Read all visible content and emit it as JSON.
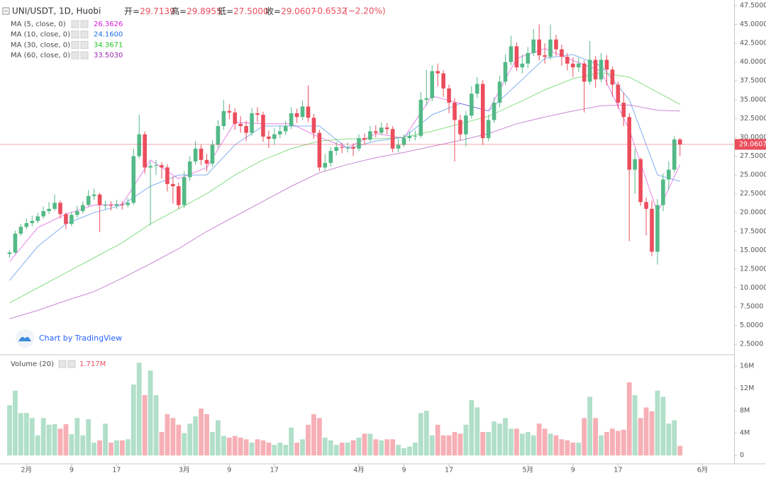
{
  "header": {
    "symbol": "UNI/USDT, 1D, Huobi",
    "ohlc": [
      {
        "name": "开=",
        "value": 29.7139
      },
      {
        "name": "高=",
        "value": 29.8955
      },
      {
        "name": "低=",
        "value": 27.5,
        "value_label": "27.5000"
      },
      {
        "name": "收=",
        "value": 29.0607
      }
    ],
    "change": -0.6532,
    "change_pct": {
      "value": -2.2,
      "label": "(−2.20%)"
    },
    "brand": "Chart by TradingView"
  },
  "chart_data": {
    "type": "candlestick",
    "up_color": "#53b987",
    "down_color": "#eb4d5c",
    "grid": false,
    "xlim": [
      -1.7,
      128.6
    ],
    "xticks": [
      {
        "value": 3,
        "label": "2月"
      },
      {
        "value": 11,
        "label": "9"
      },
      {
        "value": 19,
        "label": "17"
      },
      {
        "value": 31,
        "label": "3月"
      },
      {
        "value": 39,
        "label": "9"
      },
      {
        "value": 47,
        "label": "17"
      },
      {
        "value": 62,
        "label": "4月"
      },
      {
        "value": 70,
        "label": "9"
      },
      {
        "value": 78,
        "label": "17"
      },
      {
        "value": 92,
        "label": "5月"
      },
      {
        "value": 100,
        "label": "9"
      },
      {
        "value": 108,
        "label": "17"
      },
      {
        "value": 123,
        "label": "6月"
      }
    ],
    "ylim": [
      1.2,
      48.25
    ],
    "yticks": [
      {
        "value": 2.5,
        "label": "2.5000"
      },
      {
        "value": 5,
        "label": "5.0000"
      },
      {
        "value": 7.5,
        "label": "7.5000"
      },
      {
        "value": 10,
        "label": "10.0000"
      },
      {
        "value": 12.5,
        "label": "12.5000"
      },
      {
        "value": 15,
        "label": "15.0000"
      },
      {
        "value": 17.5,
        "label": "17.5000"
      },
      {
        "value": 20,
        "label": "20.0000"
      },
      {
        "value": 22.5,
        "label": "22.5000"
      },
      {
        "value": 25,
        "label": "25.0000"
      },
      {
        "value": 27.5,
        "label": "27.5000"
      },
      {
        "value": 30,
        "label": "30.0000"
      },
      {
        "value": 32.5,
        "label": "32.5000"
      },
      {
        "value": 35,
        "label": "35.0000"
      },
      {
        "value": 37.5,
        "label": "37.5000"
      },
      {
        "value": 40,
        "label": "40.0000"
      },
      {
        "value": 42.5,
        "label": "42.5000"
      },
      {
        "value": 45,
        "label": "45.0000"
      },
      {
        "value": 47.5,
        "label": "47.5000"
      }
    ],
    "open": [
      14.5,
      14.7,
      17.2,
      18.1,
      18.6,
      18.9,
      19.5,
      20.2,
      20.5,
      21.3,
      19.8,
      18.5,
      19.7,
      20.2,
      21.0,
      22.2,
      22.4,
      21.0,
      21.0,
      20.9,
      21.1,
      21.0,
      21.3,
      27.5,
      30.4,
      26.0,
      26.2,
      26.3,
      26.0,
      23.8,
      23.5,
      21.0,
      24.7,
      26.8,
      28.5,
      27.0,
      26.5,
      29.0,
      31.5,
      33.5,
      33.3,
      31.8,
      31.5,
      30.6,
      33.2,
      33.0,
      30.1,
      29.8,
      30.4,
      30.8,
      31.5,
      33.2,
      32.7,
      34.1,
      32.6,
      30.6,
      26.0,
      26.6,
      28.2,
      28.7,
      28.6,
      28.7,
      28.5,
      29.9,
      29.7,
      30.8,
      30.6,
      31.3,
      31.1,
      28.5,
      29.0,
      29.9,
      30.2,
      30.2,
      35.0,
      35.2,
      38.8,
      38.5,
      36.5,
      34.6,
      32.3,
      30.4,
      32.9,
      35.8,
      37.1,
      29.9,
      32.3,
      34.6,
      37.4,
      40.0,
      42.1,
      39.3,
      39.8,
      41.2,
      43.0,
      40.9,
      40.7,
      43.0,
      41.7,
      40.7,
      39.8,
      39.3,
      39.8,
      37.4,
      40.3,
      37.7,
      40.3,
      39.0,
      37.0,
      34.6,
      32.7,
      25.7,
      27.1,
      21.4,
      20.5,
      14.8,
      21.0,
      24.4,
      25.7,
      29.7139
    ],
    "high": [
      15.0,
      17.6,
      18.5,
      19.2,
      19.6,
      20.0,
      20.8,
      21.4,
      22.4,
      21.6,
      20.0,
      20.1,
      20.9,
      21.5,
      23.0,
      23.2,
      22.6,
      21.6,
      21.5,
      21.7,
      21.5,
      21.9,
      28.5,
      33.0,
      30.8,
      26.8,
      27.0,
      26.7,
      26.4,
      24.8,
      24.0,
      25.5,
      27.5,
      29.5,
      29.0,
      27.8,
      29.6,
      32.3,
      35.0,
      34.4,
      33.9,
      32.8,
      32.2,
      33.9,
      34.0,
      33.4,
      30.9,
      31.2,
      31.6,
      32.2,
      34.0,
      33.8,
      34.9,
      36.9,
      33.1,
      31.0,
      27.8,
      28.7,
      29.4,
      29.3,
      29.3,
      29.2,
      30.4,
      30.5,
      31.5,
      31.6,
      32.0,
      31.9,
      31.5,
      29.8,
      30.4,
      30.8,
      30.9,
      36.0,
      39.0,
      39.6,
      39.8,
      38.9,
      37.0,
      35.2,
      33.0,
      33.5,
      36.8,
      38.0,
      37.6,
      33.0,
      35.3,
      38.2,
      41.0,
      43.5,
      42.6,
      41.0,
      42.0,
      44.4,
      45.0,
      42.5,
      45.0,
      43.6,
      42.3,
      41.2,
      40.6,
      40.6,
      40.2,
      42.8,
      40.8,
      41.2,
      40.9,
      39.4,
      37.4,
      36.0,
      33.2,
      28.5,
      27.3,
      22.0,
      21.6,
      21.8,
      25.2,
      26.8,
      30.2,
      29.8955
    ],
    "low": [
      14.0,
      14.5,
      16.9,
      17.8,
      18.2,
      18.6,
      19.2,
      19.8,
      20.2,
      19.2,
      17.8,
      18.2,
      19.3,
      19.9,
      20.8,
      21.7,
      17.4,
      20.4,
      20.3,
      20.5,
      20.4,
      20.7,
      21.0,
      27.2,
      25.2,
      18.3,
      25.0,
      24.5,
      22.8,
      21.2,
      20.5,
      20.6,
      24.2,
      26.4,
      26.3,
      25.5,
      26.1,
      28.6,
      31.0,
      32.4,
      31.0,
      30.6,
      29.5,
      30.2,
      32.0,
      29.4,
      28.6,
      29.0,
      29.9,
      30.3,
      31.1,
      31.9,
      32.3,
      32.0,
      29.8,
      25.5,
      25.6,
      26.1,
      27.6,
      27.9,
      28.0,
      27.5,
      28.2,
      29.0,
      29.4,
      30.0,
      30.3,
      30.4,
      28.0,
      28.0,
      28.7,
      29.5,
      29.6,
      29.9,
      34.2,
      34.8,
      36.8,
      35.4,
      33.2,
      26.8,
      29.6,
      28.8,
      32.5,
      35.2,
      29.0,
      29.5,
      31.9,
      34.0,
      37.0,
      39.6,
      38.8,
      38.5,
      39.2,
      40.8,
      40.2,
      39.8,
      40.3,
      40.8,
      39.5,
      38.9,
      38.0,
      38.7,
      33.3,
      37.0,
      36.6,
      37.3,
      36.9,
      35.4,
      33.8,
      31.5,
      16.2,
      22.5,
      20.9,
      17.0,
      14.2,
      13.1,
      20.2,
      23.0,
      25.3,
      27.5
    ],
    "close": [
      14.7,
      17.2,
      18.1,
      18.6,
      18.9,
      19.5,
      20.2,
      20.5,
      21.3,
      19.8,
      18.5,
      19.7,
      20.2,
      21.0,
      22.2,
      22.4,
      21.0,
      21.0,
      20.9,
      21.1,
      21.0,
      21.3,
      27.5,
      30.4,
      26.0,
      26.2,
      26.3,
      26.0,
      23.8,
      23.5,
      21.0,
      24.7,
      26.8,
      28.5,
      27.0,
      26.5,
      29.0,
      31.5,
      33.5,
      33.3,
      31.8,
      31.5,
      30.6,
      33.2,
      33.0,
      30.1,
      29.8,
      30.4,
      30.8,
      31.5,
      33.2,
      32.7,
      34.1,
      32.6,
      30.6,
      26.0,
      26.6,
      28.2,
      28.7,
      28.6,
      28.7,
      28.5,
      29.9,
      29.7,
      30.8,
      30.6,
      31.3,
      31.1,
      28.5,
      29.0,
      29.9,
      30.2,
      30.2,
      35.0,
      35.2,
      38.8,
      38.5,
      36.5,
      34.6,
      32.3,
      30.4,
      32.9,
      35.8,
      37.1,
      29.9,
      32.3,
      34.6,
      37.4,
      40.0,
      42.1,
      39.3,
      39.8,
      41.2,
      43.0,
      40.9,
      40.7,
      43.0,
      41.7,
      40.7,
      39.8,
      39.3,
      39.8,
      37.4,
      40.3,
      37.7,
      40.3,
      39.0,
      37.0,
      34.6,
      32.7,
      25.7,
      27.1,
      21.4,
      20.5,
      14.8,
      21.0,
      24.4,
      25.7,
      29.7139,
      29.0607
    ],
    "ma": [
      {
        "name": "MA (5, close, 0)",
        "color": "#d81bd8",
        "x": [
          0,
          5,
          10,
          15,
          20,
          25,
          30,
          35,
          40,
          45,
          50,
          55,
          60,
          65,
          70,
          75,
          80,
          85,
          90,
          95,
          100,
          105,
          110,
          115,
          119
        ],
        "values": [
          13.5,
          18,
          19.8,
          21,
          21.1,
          27,
          24.5,
          26,
          32,
          31.8,
          31.8,
          30,
          28.6,
          30.5,
          29.9,
          35.5,
          34.5,
          33.5,
          40.5,
          41.8,
          40.2,
          38.8,
          31,
          20,
          26.3626
        ],
        "value_labels": [
          null,
          null,
          null,
          null,
          null,
          null,
          null,
          null,
          null,
          null,
          null,
          null,
          null,
          null,
          null,
          null,
          null,
          null,
          null,
          null,
          null,
          null,
          null,
          null,
          "26.3626"
        ]
      },
      {
        "name": "MA (10, close, 0)",
        "color": "#1e6fe5",
        "x": [
          0,
          5,
          10,
          15,
          20,
          25,
          30,
          35,
          40,
          45,
          50,
          55,
          60,
          65,
          70,
          75,
          80,
          85,
          90,
          95,
          100,
          105,
          110,
          115,
          119
        ],
        "values": [
          11,
          15.5,
          18.5,
          20,
          21,
          23.5,
          25,
          25,
          29,
          31.5,
          31.5,
          31.5,
          28.5,
          29.5,
          30,
          33,
          34.5,
          33.5,
          37,
          40.5,
          41,
          39.5,
          35,
          25,
          24.16
        ],
        "value_labels": [
          null,
          null,
          null,
          null,
          null,
          null,
          null,
          null,
          null,
          null,
          null,
          null,
          null,
          null,
          null,
          null,
          null,
          null,
          null,
          null,
          null,
          null,
          null,
          null,
          "24.1600"
        ]
      },
      {
        "name": "MA (30, close, 0)",
        "color": "#22c322",
        "x": [
          0,
          5,
          10,
          15,
          20,
          25,
          30,
          35,
          40,
          45,
          50,
          55,
          60,
          65,
          70,
          75,
          80,
          85,
          90,
          95,
          100,
          105,
          110,
          115,
          119
        ],
        "values": [
          8,
          10,
          12,
          14,
          16,
          18.5,
          20.5,
          22.5,
          25,
          27,
          28.5,
          29.5,
          29.8,
          29.8,
          30,
          30.8,
          31.8,
          32.8,
          34.5,
          36.3,
          37.8,
          38.6,
          38,
          36,
          34.3671
        ],
        "value_labels": [
          null,
          null,
          null,
          null,
          null,
          null,
          null,
          null,
          null,
          null,
          null,
          null,
          null,
          null,
          null,
          null,
          null,
          null,
          null,
          null,
          null,
          null,
          null,
          null,
          "34.3671"
        ]
      },
      {
        "name": "MA (60, close, 0)",
        "color": "#9c27b0",
        "x": [
          0,
          5,
          10,
          15,
          20,
          25,
          30,
          35,
          40,
          45,
          50,
          55,
          60,
          65,
          70,
          75,
          80,
          85,
          90,
          95,
          100,
          105,
          110,
          115,
          119
        ],
        "values": [
          5.9,
          7,
          8.3,
          9.5,
          11.3,
          13.2,
          15.2,
          17.5,
          19.5,
          21.5,
          23.5,
          25.3,
          26.4,
          27.3,
          28,
          28.8,
          29.6,
          30.5,
          31.8,
          32.7,
          33.5,
          34.2,
          34.3,
          33.6,
          33.503
        ],
        "value_labels": [
          null,
          null,
          null,
          null,
          null,
          null,
          null,
          null,
          null,
          null,
          null,
          null,
          null,
          null,
          null,
          null,
          null,
          null,
          null,
          null,
          null,
          null,
          null,
          null,
          "33.5030"
        ]
      }
    ],
    "volume": {
      "name": "Volume (20)",
      "ylim": [
        -1500000,
        17900000
      ],
      "yticks": [
        0,
        {
          "value": 4000000,
          "label": "4M"
        },
        {
          "value": 8000000,
          "label": "8M"
        },
        {
          "value": 12000000,
          "label": "12M"
        },
        {
          "value": 16000000,
          "label": "16M"
        }
      ],
      "values": [
        9000000,
        11600000,
        7600000,
        7600000,
        6700000,
        3600000,
        6700000,
        5500000,
        5600000,
        4800000,
        5600000,
        3800000,
        6700000,
        3600000,
        6500000,
        2300000,
        2700000,
        5700000,
        2300000,
        2700000,
        2700000,
        2900000,
        12700000,
        16600000,
        10800000,
        15200000,
        10800000,
        4200000,
        7400000,
        6700000,
        5500000,
        4000000,
        5700000,
        7000000,
        8400000,
        7400000,
        4200000,
        6300000,
        3500000,
        3200000,
        3500000,
        3200000,
        2900000,
        2300000,
        2900000,
        2700000,
        2300000,
        1900000,
        2300000,
        1900000,
        5000000,
        2300000,
        2900000,
        5500000,
        7400000,
        6700000,
        3200000,
        2700000,
        1900000,
        2300000,
        2300000,
        2700000,
        3200000,
        3900000,
        3900000,
        2900000,
        2700000,
        2900000,
        2900000,
        1900000,
        1300000,
        1600000,
        2300000,
        7600000,
        8000000,
        3600000,
        5500000,
        3600000,
        3600000,
        4200000,
        3900000,
        5500000,
        9900000,
        8600000,
        4200000,
        4200000,
        6100000,
        5700000,
        6700000,
        4800000,
        4800000,
        3900000,
        4200000,
        3600000,
        5700000,
        4800000,
        3900000,
        3600000,
        2900000,
        2700000,
        2300000,
        2300000,
        6700000,
        10500000,
        6700000,
        3600000,
        4200000,
        4800000,
        4400000,
        4600000,
        13100000,
        10800000,
        6700000,
        8600000,
        7900000,
        11600000,
        10500000,
        5700000,
        6300000,
        1717000
      ],
      "value_labels": [
        null,
        null,
        null,
        null,
        null,
        null,
        null,
        null,
        null,
        null,
        null,
        null,
        null,
        null,
        null,
        null,
        null,
        null,
        null,
        null,
        null,
        null,
        null,
        null,
        null,
        null,
        null,
        null,
        null,
        null,
        null,
        null,
        null,
        null,
        null,
        null,
        null,
        null,
        null,
        null,
        null,
        null,
        null,
        null,
        null,
        null,
        null,
        null,
        null,
        null,
        null,
        null,
        null,
        null,
        null,
        null,
        null,
        null,
        null,
        null,
        null,
        null,
        null,
        null,
        null,
        null,
        null,
        null,
        null,
        null,
        null,
        null,
        null,
        null,
        null,
        null,
        null,
        null,
        null,
        null,
        null,
        null,
        null,
        null,
        null,
        null,
        null,
        null,
        null,
        null,
        null,
        null,
        null,
        null,
        null,
        null,
        null,
        null,
        null,
        null,
        null,
        null,
        null,
        null,
        null,
        null,
        null,
        null,
        null,
        null,
        null,
        null,
        null,
        null,
        null,
        null,
        null,
        null,
        null,
        "1.717M"
      ]
    }
  }
}
